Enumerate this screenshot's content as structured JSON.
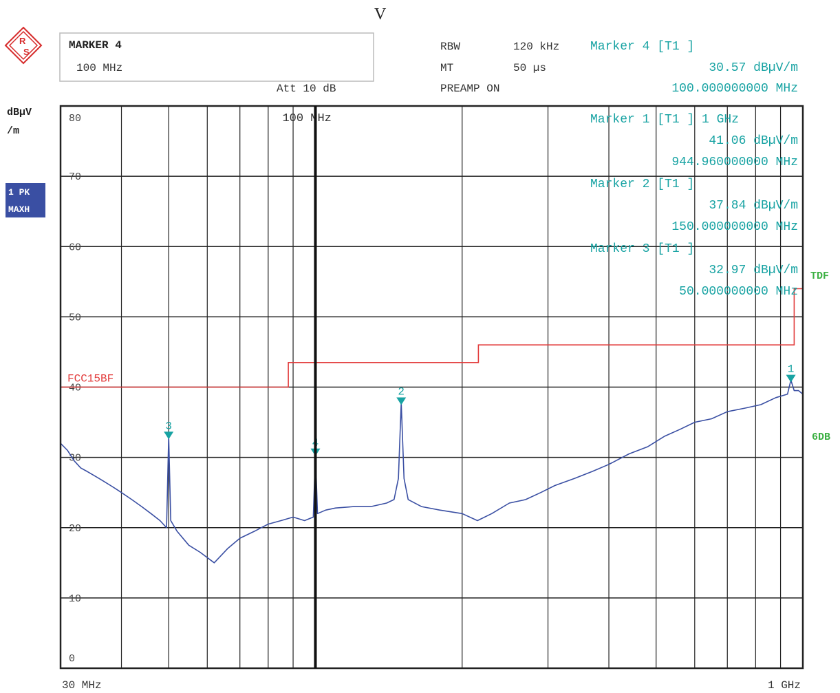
{
  "header": {
    "top_letter": "V",
    "marker_box": {
      "title": "MARKER 4",
      "value": "100 MHz"
    },
    "att": "Att 10 dB",
    "rbw_label": "RBW",
    "rbw_value": "120 kHz",
    "mt_label": "MT",
    "mt_value": "50 µs",
    "preamp": "PREAMP ON",
    "active_marker": {
      "label": "Marker 4 [T1 ]",
      "level": "30.57 dBµV/m",
      "freq": "100.000000000 MHz"
    }
  },
  "side": {
    "unit_line1": "dBµV",
    "unit_line2": "/m",
    "trace_badge_line1": "1 PK",
    "trace_badge_line2": "MAXH",
    "tdf": "TDF",
    "sixdb": "6DB"
  },
  "colors": {
    "trace": "#3a4fa3",
    "limit": "#e23b3b",
    "marker": "#18a3a3",
    "green": "#3cb043",
    "badge": "#3a4fa3"
  },
  "chart_data": {
    "type": "line",
    "x_scale": "log",
    "xlim": [
      30,
      1000
    ],
    "ylim": [
      0,
      80
    ],
    "yticks": [
      0,
      10,
      20,
      30,
      40,
      50,
      60,
      70,
      80
    ],
    "x_left_label": "30 MHz",
    "x_right_label": "1 GHz",
    "center_label": "100 MHz",
    "limit_line": {
      "name": "FCC15BF",
      "points": [
        [
          30,
          40
        ],
        [
          88,
          40
        ],
        [
          88,
          43.5
        ],
        [
          216,
          43.5
        ],
        [
          216,
          46
        ],
        [
          960,
          46
        ],
        [
          960,
          54
        ],
        [
          1000,
          54
        ]
      ]
    },
    "series": [
      {
        "values": [
          [
            30,
            32
          ],
          [
            31,
            31.0
          ],
          [
            32,
            29.5
          ],
          [
            33,
            28.5
          ],
          [
            34,
            28.0
          ],
          [
            35,
            27.5
          ],
          [
            36,
            27.0
          ],
          [
            37,
            26.5
          ],
          [
            38,
            26.0
          ],
          [
            39,
            25.5
          ],
          [
            40,
            25.0
          ],
          [
            42,
            24.0
          ],
          [
            44,
            23.0
          ],
          [
            46,
            22.0
          ],
          [
            48,
            21.0
          ],
          [
            49.5,
            20.0
          ],
          [
            50,
            33.0
          ],
          [
            50.5,
            21.0
          ],
          [
            52,
            19.5
          ],
          [
            55,
            17.5
          ],
          [
            58,
            16.5
          ],
          [
            62,
            15.0
          ],
          [
            66,
            17.0
          ],
          [
            70,
            18.5
          ],
          [
            75,
            19.5
          ],
          [
            80,
            20.5
          ],
          [
            85,
            21.0
          ],
          [
            90,
            21.5
          ],
          [
            95,
            21.0
          ],
          [
            99,
            21.5
          ],
          [
            100,
            30.6
          ],
          [
            101,
            22.0
          ],
          [
            105,
            22.5
          ],
          [
            110,
            22.8
          ],
          [
            120,
            23.0
          ],
          [
            130,
            23.0
          ],
          [
            140,
            23.5
          ],
          [
            145,
            24.0
          ],
          [
            148,
            27.0
          ],
          [
            150,
            37.8
          ],
          [
            152,
            27.0
          ],
          [
            155,
            24.0
          ],
          [
            165,
            23.0
          ],
          [
            180,
            22.5
          ],
          [
            200,
            22.0
          ],
          [
            215,
            21.0
          ],
          [
            230,
            22.0
          ],
          [
            250,
            23.5
          ],
          [
            270,
            24.0
          ],
          [
            290,
            25.0
          ],
          [
            310,
            26.0
          ],
          [
            340,
            27.0
          ],
          [
            370,
            28.0
          ],
          [
            400,
            29.0
          ],
          [
            440,
            30.5
          ],
          [
            480,
            31.5
          ],
          [
            520,
            33.0
          ],
          [
            560,
            34.0
          ],
          [
            600,
            35.0
          ],
          [
            650,
            35.5
          ],
          [
            700,
            36.5
          ],
          [
            760,
            37.0
          ],
          [
            820,
            37.5
          ],
          [
            880,
            38.5
          ],
          [
            930,
            39.0
          ],
          [
            945,
            41.0
          ],
          [
            960,
            39.5
          ],
          [
            980,
            39.5
          ],
          [
            1000,
            39.0
          ]
        ]
      }
    ],
    "markers": [
      {
        "id": "1",
        "freq": 944.96,
        "level": 41.06,
        "label": "Marker 1 [T1 ] 1 GHz",
        "level_text": "41.06 dBµV/m",
        "freq_text": "944.960000000 MHz"
      },
      {
        "id": "2",
        "freq": 150,
        "level": 37.84,
        "label": "Marker 2 [T1 ]",
        "level_text": "37.84 dBµV/m",
        "freq_text": "150.000000000 MHz"
      },
      {
        "id": "3",
        "freq": 50,
        "level": 32.97,
        "label": "Marker 3 [T1 ]",
        "level_text": "32.97 dBµV/m",
        "freq_text": "50.000000000 MHz"
      },
      {
        "id": "4",
        "freq": 100,
        "level": 30.57
      }
    ]
  }
}
